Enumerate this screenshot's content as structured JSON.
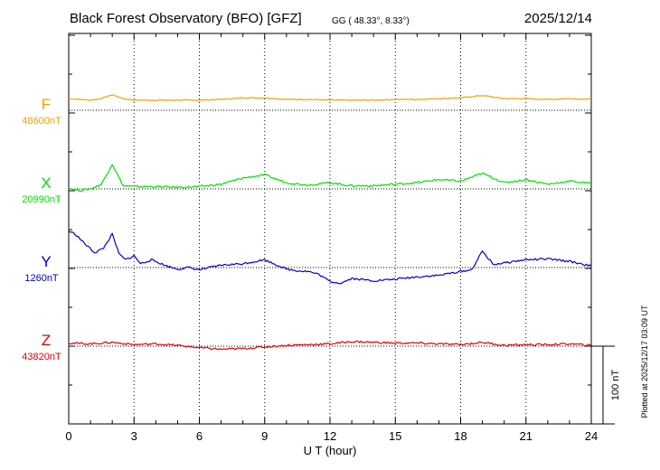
{
  "header": {
    "title": "Black Forest Observatory (BFO)  [GFZ]",
    "coords": "GG ( 48.33°,   8.33°)",
    "date": "2025/12/14"
  },
  "colors": {
    "F": "#f0a000",
    "X": "#00e000",
    "Y": "#0000cc",
    "Z": "#e00000",
    "axes": "#000000"
  },
  "chart_data": {
    "type": "line",
    "title": "Black Forest Observatory (BFO)  [GFZ]",
    "xlabel": "U T (hour)",
    "xlim": [
      0,
      24
    ],
    "x_ticks": [
      "0",
      "3",
      "6",
      "9",
      "12",
      "15",
      "18",
      "21",
      "24"
    ],
    "grid": true,
    "scale_bar": "100 nT",
    "plotted_note": "Plotted at 2025/12/17 03:09 UT",
    "series": [
      {
        "name": "F",
        "baseline": "48600nT",
        "hours": [
          0,
          0.5,
          1,
          1.5,
          2,
          2.5,
          3,
          4,
          5,
          6,
          7,
          8,
          9,
          10,
          11,
          12,
          13,
          14,
          15,
          16,
          17,
          18,
          19,
          20,
          21,
          22,
          23,
          24
        ],
        "values": [
          15,
          14,
          13,
          15,
          20,
          15,
          13,
          13,
          13,
          13,
          14,
          16,
          16,
          14,
          14,
          13,
          13,
          13,
          14,
          14,
          15,
          16,
          19,
          15,
          15,
          14,
          15,
          14
        ]
      },
      {
        "name": "X",
        "baseline": "20990nT",
        "hours": [
          0,
          0.5,
          1,
          1.5,
          2,
          2.5,
          3,
          4,
          5,
          6,
          7,
          8,
          9,
          10,
          11,
          12,
          13,
          14,
          15,
          16,
          17,
          18,
          19,
          20,
          21,
          22,
          23,
          24
        ],
        "values": [
          1,
          -2,
          0,
          6,
          32,
          4,
          3,
          3,
          2,
          3,
          6,
          14,
          18,
          8,
          5,
          8,
          4,
          4,
          6,
          8,
          12,
          10,
          20,
          8,
          12,
          6,
          10,
          7
        ]
      },
      {
        "name": "Y",
        "baseline": "1260nT",
        "hours": [
          0,
          0.3,
          0.8,
          1.2,
          1.6,
          2,
          2.3,
          2.6,
          3,
          3.3,
          3.8,
          4.5,
          5,
          5.5,
          6,
          7,
          8,
          9,
          9.5,
          10,
          10.5,
          11,
          11.5,
          12,
          12.5,
          13,
          14,
          15,
          16,
          17,
          18,
          18.5,
          19,
          19.5,
          20,
          21,
          22,
          23,
          24
        ],
        "values": [
          47,
          43,
          29,
          19,
          25,
          43,
          18,
          10,
          15,
          5,
          10,
          2,
          -2,
          0,
          -3,
          3,
          5,
          10,
          4,
          -2,
          -4,
          -5,
          -9,
          -18,
          -20,
          -14,
          -17,
          -15,
          -12,
          -10,
          -5,
          -3,
          21,
          4,
          6,
          10,
          11,
          8,
          2
        ]
      },
      {
        "name": "Z",
        "baseline": "43820nT",
        "hours": [
          0,
          1,
          2,
          3,
          4,
          5,
          6,
          7,
          8,
          9,
          10,
          11,
          12,
          13,
          14,
          15,
          16,
          17,
          18,
          19,
          20,
          21,
          22,
          23,
          24
        ],
        "values": [
          4,
          3,
          5,
          2,
          3,
          1,
          -2,
          -4,
          -3,
          -1,
          1,
          2,
          3,
          6,
          5,
          4,
          4,
          3,
          2,
          5,
          1,
          2,
          2,
          3,
          1
        ]
      }
    ]
  }
}
